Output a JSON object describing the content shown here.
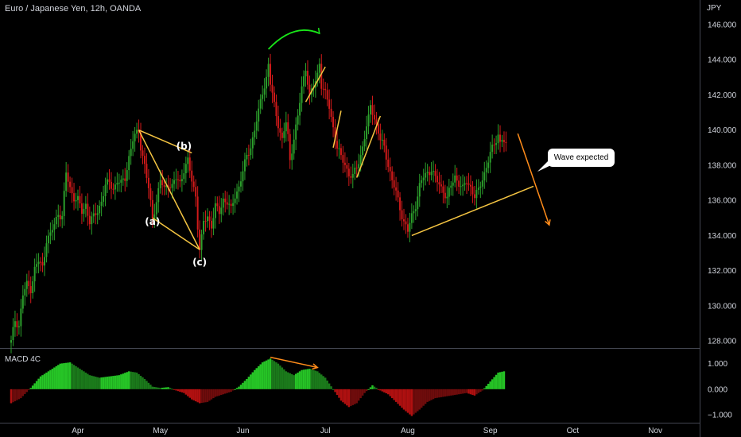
{
  "chart_data": {
    "type": "candlestick",
    "title": "Euro / Japanese Yen, 12h, OANDA",
    "currency_unit": "JPY",
    "indicator_label": "MACD 4C",
    "price_axis": {
      "ylim": [
        127.6,
        147.4
      ],
      "ticks": [
        "146.000",
        "144.000",
        "142.000",
        "140.000",
        "138.000",
        "136.000",
        "134.000",
        "132.000",
        "130.000",
        "128.000"
      ],
      "tick_values": [
        146,
        144,
        142,
        140,
        138,
        136,
        134,
        132,
        130,
        128
      ]
    },
    "macd_axis": {
      "ylim": [
        -1.25,
        1.55
      ],
      "ticks": [
        "1.000",
        "0.000",
        "−1.000"
      ],
      "tick_values": [
        1,
        0,
        -1
      ]
    },
    "time_axis": {
      "labels": [
        "Apr",
        "May",
        "Jun",
        "Jul",
        "Aug",
        "Sep",
        "Oct",
        "Nov"
      ],
      "bar_index": [
        34,
        76,
        118,
        160,
        202,
        244,
        286,
        328
      ]
    },
    "colors": {
      "up": "#2ca02c",
      "down": "#d21a1a",
      "trendline": "#f5c542",
      "arrow": "#ff8c1a",
      "green_arc": "#19e619",
      "grid": "#333333"
    },
    "price_path": [
      [
        0,
        127.9
      ],
      [
        2,
        129.2
      ],
      [
        4,
        128.9
      ],
      [
        6,
        130.6
      ],
      [
        8,
        131.2
      ],
      [
        10,
        131.0
      ],
      [
        12,
        132.1
      ],
      [
        14,
        132.5
      ],
      [
        16,
        132.2
      ],
      [
        18,
        133.8
      ],
      [
        20,
        134.0
      ],
      [
        22,
        134.6
      ],
      [
        24,
        135.3
      ],
      [
        26,
        135.1
      ],
      [
        28,
        137.5
      ],
      [
        30,
        136.7
      ],
      [
        32,
        136.2
      ],
      [
        34,
        136.0
      ],
      [
        36,
        135.3
      ],
      [
        38,
        135.8
      ],
      [
        40,
        134.8
      ],
      [
        42,
        135.0
      ],
      [
        44,
        135.4
      ],
      [
        46,
        136.0
      ],
      [
        48,
        136.8
      ],
      [
        50,
        137.0
      ],
      [
        52,
        136.7
      ],
      [
        54,
        137.1
      ],
      [
        56,
        136.9
      ],
      [
        58,
        137.3
      ],
      [
        60,
        138.5
      ],
      [
        62,
        139.4
      ],
      [
        64,
        139.8
      ],
      [
        65,
        140.0
      ],
      [
        66,
        139.1
      ],
      [
        68,
        138.0
      ],
      [
        70,
        136.6
      ],
      [
        72,
        135.0
      ],
      [
        74,
        136.0
      ],
      [
        76,
        137.1
      ],
      [
        78,
        136.6
      ],
      [
        80,
        137.0
      ],
      [
        82,
        136.8
      ],
      [
        84,
        137.2
      ],
      [
        86,
        137.0
      ],
      [
        88,
        137.8
      ],
      [
        90,
        138.2
      ],
      [
        92,
        137.1
      ],
      [
        94,
        136.3
      ],
      [
        95,
        134.6
      ],
      [
        96,
        133.2
      ],
      [
        97,
        133.8
      ],
      [
        98,
        134.7
      ],
      [
        100,
        135.1
      ],
      [
        102,
        134.6
      ],
      [
        104,
        135.6
      ],
      [
        106,
        135.3
      ],
      [
        108,
        136.1
      ],
      [
        110,
        135.9
      ],
      [
        112,
        135.4
      ],
      [
        114,
        136.3
      ],
      [
        116,
        136.8
      ],
      [
        118,
        137.6
      ],
      [
        120,
        138.5
      ],
      [
        122,
        139.1
      ],
      [
        124,
        140.0
      ],
      [
        126,
        141.0
      ],
      [
        128,
        142.2
      ],
      [
        130,
        143.0
      ],
      [
        131,
        143.7
      ],
      [
        132,
        142.6
      ],
      [
        134,
        141.4
      ],
      [
        136,
        140.4
      ],
      [
        138,
        139.4
      ],
      [
        140,
        140.4
      ],
      [
        141,
        139.6
      ],
      [
        142,
        138.3
      ],
      [
        144,
        139.6
      ],
      [
        146,
        140.7
      ],
      [
        148,
        142.4
      ],
      [
        150,
        143.6
      ],
      [
        151,
        142.8
      ],
      [
        152,
        141.9
      ],
      [
        154,
        142.4
      ],
      [
        156,
        143.2
      ],
      [
        157,
        143.9
      ],
      [
        158,
        142.6
      ],
      [
        160,
        142.0
      ],
      [
        162,
        141.3
      ],
      [
        164,
        140.2
      ],
      [
        166,
        139.0
      ],
      [
        168,
        138.4
      ],
      [
        170,
        138.1
      ],
      [
        172,
        137.5
      ],
      [
        174,
        137.3
      ],
      [
        176,
        137.9
      ],
      [
        178,
        138.6
      ],
      [
        180,
        139.6
      ],
      [
        182,
        140.6
      ],
      [
        183,
        141.4
      ],
      [
        184,
        141.1
      ],
      [
        186,
        140.3
      ],
      [
        188,
        139.4
      ],
      [
        190,
        139.0
      ],
      [
        192,
        138.1
      ],
      [
        194,
        137.1
      ],
      [
        196,
        136.4
      ],
      [
        198,
        135.6
      ],
      [
        200,
        134.8
      ],
      [
        202,
        134.2
      ],
      [
        204,
        135.1
      ],
      [
        206,
        135.8
      ],
      [
        208,
        136.8
      ],
      [
        210,
        137.3
      ],
      [
        212,
        137.6
      ],
      [
        214,
        137.8
      ],
      [
        216,
        137.2
      ],
      [
        218,
        136.9
      ],
      [
        220,
        136.6
      ],
      [
        222,
        136.1
      ],
      [
        224,
        136.8
      ],
      [
        226,
        137.4
      ],
      [
        228,
        137.0
      ],
      [
        230,
        136.6
      ],
      [
        232,
        137.1
      ],
      [
        234,
        136.8
      ],
      [
        236,
        136.2
      ],
      [
        238,
        136.5
      ],
      [
        240,
        137.3
      ],
      [
        242,
        137.9
      ],
      [
        244,
        138.6
      ],
      [
        246,
        139.2
      ],
      [
        248,
        139.8
      ],
      [
        249,
        139.3
      ],
      [
        250,
        139.5
      ],
      [
        252,
        139.0
      ]
    ],
    "macd_path": [
      [
        0,
        -0.55
      ],
      [
        5,
        -0.35
      ],
      [
        10,
        0.05
      ],
      [
        15,
        0.5
      ],
      [
        20,
        0.75
      ],
      [
        25,
        1.0
      ],
      [
        30,
        1.05
      ],
      [
        35,
        0.8
      ],
      [
        40,
        0.55
      ],
      [
        45,
        0.45
      ],
      [
        50,
        0.5
      ],
      [
        55,
        0.55
      ],
      [
        60,
        0.7
      ],
      [
        64,
        0.65
      ],
      [
        68,
        0.4
      ],
      [
        72,
        0.1
      ],
      [
        76,
        0.05
      ],
      [
        80,
        0.08
      ],
      [
        84,
        -0.05
      ],
      [
        88,
        -0.15
      ],
      [
        92,
        -0.4
      ],
      [
        96,
        -0.55
      ],
      [
        100,
        -0.5
      ],
      [
        104,
        -0.3
      ],
      [
        108,
        -0.2
      ],
      [
        112,
        -0.1
      ],
      [
        116,
        0.1
      ],
      [
        120,
        0.4
      ],
      [
        124,
        0.75
      ],
      [
        128,
        1.05
      ],
      [
        132,
        1.2
      ],
      [
        136,
        1.0
      ],
      [
        140,
        0.7
      ],
      [
        144,
        0.55
      ],
      [
        148,
        0.75
      ],
      [
        152,
        0.8
      ],
      [
        156,
        0.7
      ],
      [
        160,
        0.45
      ],
      [
        164,
        0.0
      ],
      [
        168,
        -0.45
      ],
      [
        172,
        -0.7
      ],
      [
        176,
        -0.55
      ],
      [
        180,
        -0.15
      ],
      [
        184,
        0.15
      ],
      [
        188,
        -0.05
      ],
      [
        192,
        -0.2
      ],
      [
        196,
        -0.5
      ],
      [
        200,
        -0.8
      ],
      [
        204,
        -1.05
      ],
      [
        208,
        -0.8
      ],
      [
        212,
        -0.5
      ],
      [
        216,
        -0.35
      ],
      [
        220,
        -0.3
      ],
      [
        224,
        -0.25
      ],
      [
        228,
        -0.2
      ],
      [
        232,
        -0.15
      ],
      [
        236,
        -0.25
      ],
      [
        240,
        -0.05
      ],
      [
        244,
        0.3
      ],
      [
        248,
        0.65
      ],
      [
        251,
        0.7
      ]
    ],
    "annotations": [
      {
        "label": "(a)",
        "bar": 72,
        "price": 134.6
      },
      {
        "label": "(b)",
        "bar": 88,
        "price": 138.9
      },
      {
        "label": "(c)",
        "bar": 96,
        "price": 132.3
      }
    ],
    "callout_text": "Wave expected",
    "trend_lines": [
      {
        "from": [
          65,
          140.0
        ],
        "to": [
          96,
          133.2
        ]
      },
      {
        "from": [
          72,
          135.0
        ],
        "to": [
          96,
          133.2
        ]
      },
      {
        "from": [
          65,
          140.0
        ],
        "to": [
          92,
          138.7
        ]
      },
      {
        "from": [
          150,
          141.6
        ],
        "to": [
          160,
          143.6
        ]
      },
      {
        "from": [
          164,
          139.0
        ],
        "to": [
          168,
          141.1
        ]
      },
      {
        "from": [
          176,
          137.3
        ],
        "to": [
          188,
          140.8
        ]
      },
      {
        "from": [
          204,
          134.0
        ],
        "to": [
          266,
          136.8
        ]
      }
    ],
    "projection_arrow": {
      "from": [
        258,
        139.8
      ],
      "to": [
        274,
        134.6
      ]
    },
    "macd_divergence": {
      "from": [
        132,
        1.25
      ],
      "to": [
        156,
        0.85
      ]
    },
    "top_arc": {
      "from": [
        131,
        144.6
      ],
      "to": [
        157,
        145.5
      ]
    }
  }
}
